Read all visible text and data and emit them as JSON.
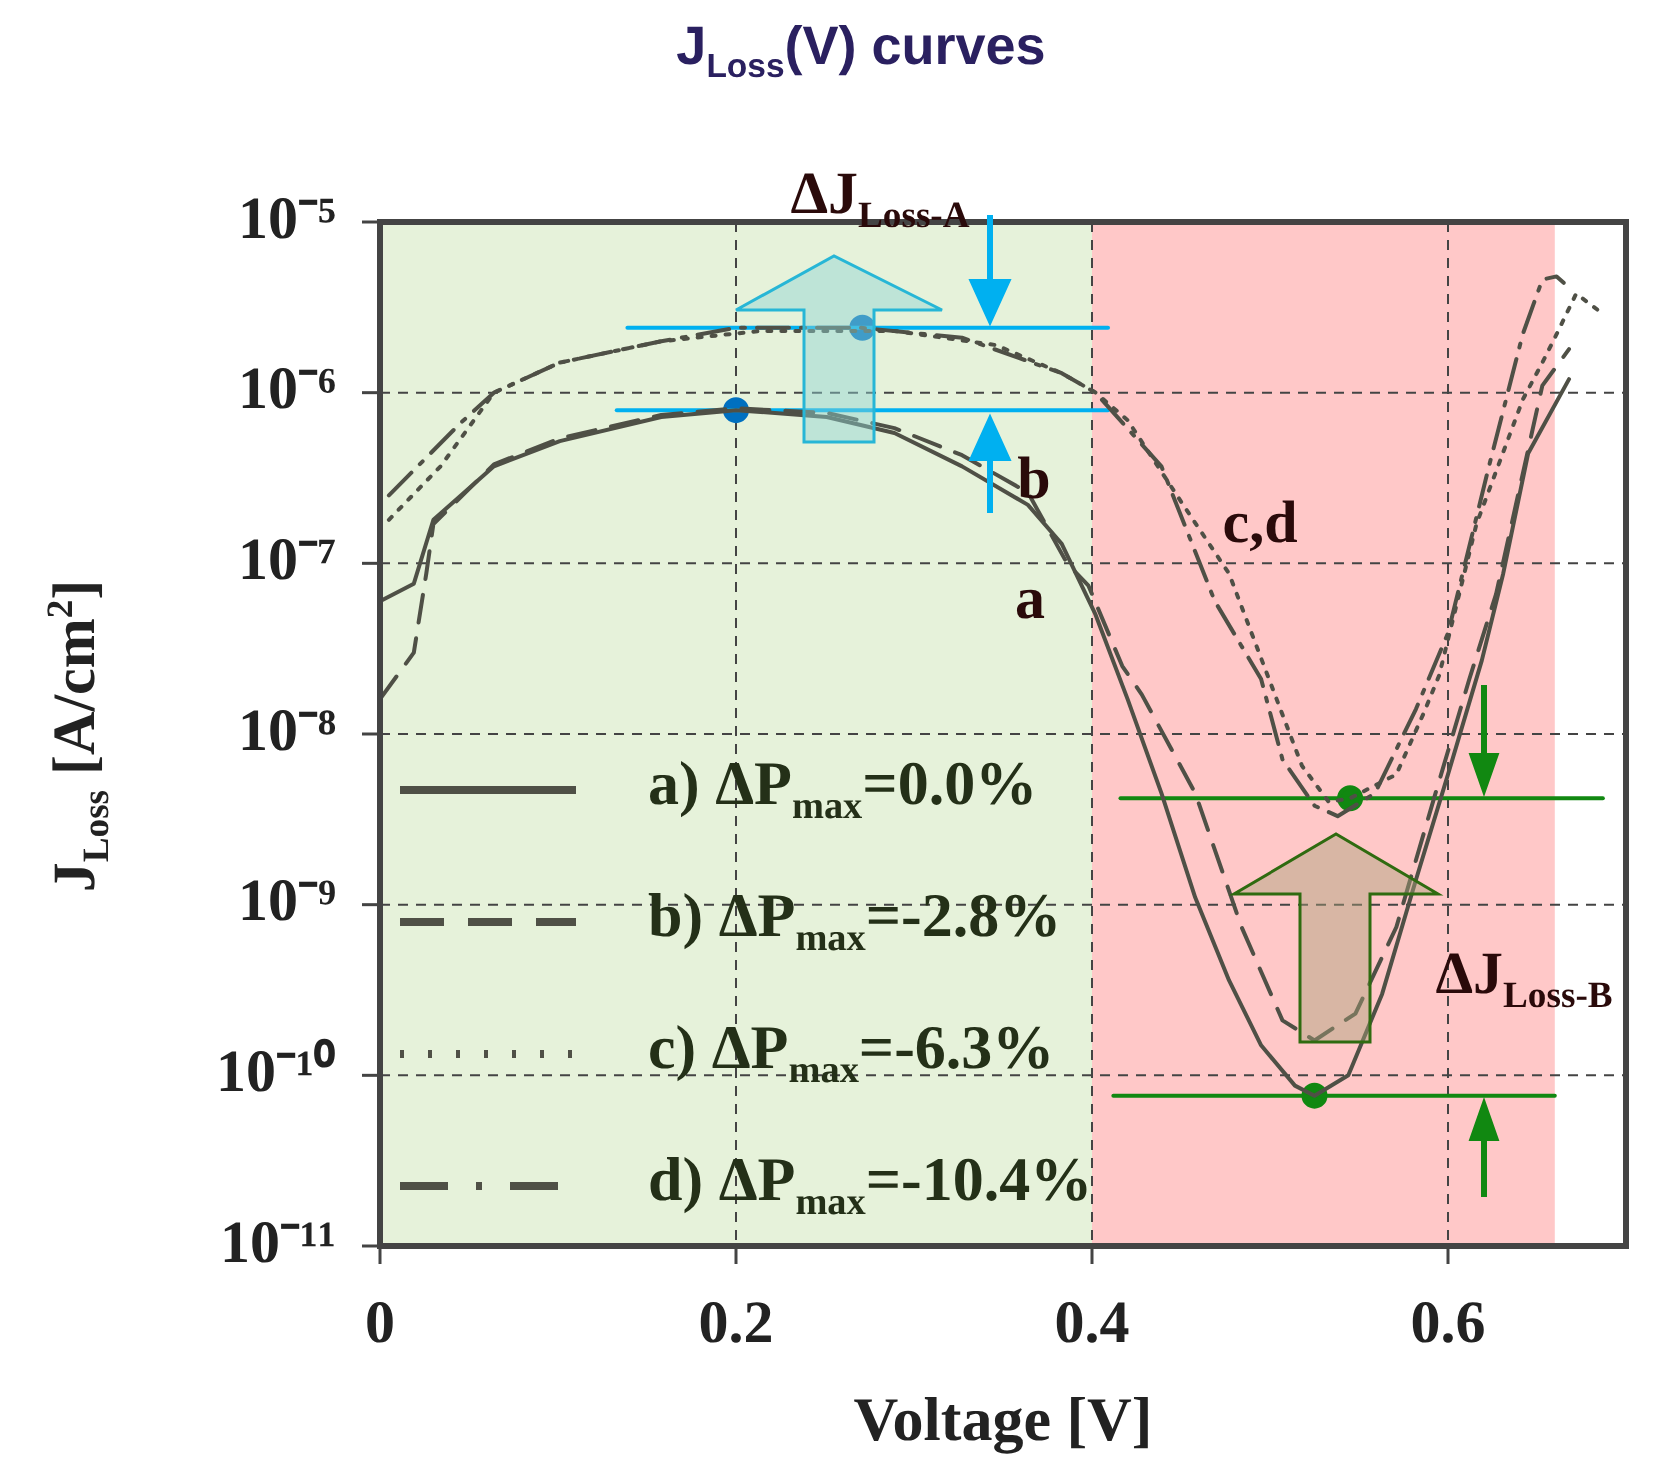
{
  "chart_data": {
    "type": "line",
    "title": "J$_{Loss}$(V) curves",
    "xlabel": "Voltage [V]",
    "ylabel": "J$_{Loss}$ [A/cm$^{2}$]",
    "xlim": [
      0,
      0.7
    ],
    "ylim": [
      1e-11,
      1e-05
    ],
    "xticks": [
      0,
      0.2,
      0.4,
      0.6
    ],
    "yticks": [
      {
        "value": 1e-11,
        "label": "10⁻¹¹"
      },
      {
        "value": 1e-10,
        "label": "10⁻¹⁰"
      },
      {
        "value": 1e-09,
        "label": "10⁻⁹"
      },
      {
        "value": 1e-08,
        "label": "10⁻⁸"
      },
      {
        "value": 1e-07,
        "label": "10⁻⁷"
      },
      {
        "value": 1e-06,
        "label": "10⁻⁶"
      },
      {
        "value": 1e-05,
        "label": "10⁻⁵"
      }
    ],
    "log": "y",
    "grid": true,
    "legend": "bottom left",
    "bands": [
      {
        "axis": "x",
        "from": 0,
        "to": 0.4,
        "color": "#e6f2da"
      },
      {
        "axis": "x",
        "from": 0.4,
        "to": 0.66,
        "color": "#ffc8c8"
      }
    ],
    "series": [
      {
        "name": "a) ΔP$_{max}$=0.0%",
        "color": "#4f5046",
        "line_style": "solid",
        "marker": "none",
        "x": [
          0,
          0.019,
          0.03,
          0.064,
          0.101,
          0.158,
          0.2,
          0.251,
          0.289,
          0.327,
          0.364,
          0.383,
          0.402,
          0.42,
          0.439,
          0.458,
          0.477,
          0.495,
          0.514,
          0.525,
          0.544,
          0.563,
          0.582,
          0.6,
          0.619,
          0.631,
          0.645,
          0.668
        ],
        "values": [
          6e-08,
          7.6e-08,
          1.8e-07,
          3.7e-07,
          5.2e-07,
          7.2e-07,
          7.9e-07,
          7.2e-07,
          5.8e-07,
          3.7e-07,
          2.2e-07,
          1.3e-07,
          5e-08,
          1.6e-08,
          4.5e-09,
          1.1e-09,
          3.6e-10,
          1.5e-10,
          8.7e-11,
          7.6e-11,
          1e-10,
          3e-10,
          1.4e-09,
          5.8e-09,
          2.7e-08,
          8.7e-08,
          4.4e-07,
          1.2e-06
        ]
      },
      {
        "name": "b) ΔP$_{max}$=-2.8%",
        "color": "#4f5046",
        "line_style": "dashed",
        "marker": "none",
        "x": [
          0,
          0.019,
          0.026,
          0.03,
          0.064,
          0.101,
          0.158,
          0.2,
          0.251,
          0.289,
          0.327,
          0.364,
          0.386,
          0.398,
          0.417,
          0.428,
          0.458,
          0.484,
          0.507,
          0.525,
          0.548,
          0.571,
          0.593,
          0.612,
          0.627,
          0.653,
          0.668
        ],
        "values": [
          1.6e-08,
          3e-08,
          8.7e-08,
          1.7e-07,
          3.8e-07,
          5.4e-07,
          7.4e-07,
          8.1e-07,
          7.6e-07,
          6.2e-07,
          4.3e-07,
          2.6e-07,
          1e-07,
          7.4e-08,
          2.5e-08,
          1.7e-08,
          4.5e-09,
          7.4e-10,
          2.1e-10,
          1.6e-10,
          2.3e-10,
          7.4e-10,
          4.5e-09,
          2.1e-08,
          6.6e-08,
          1.1e-06,
          1.8e-06
        ]
      },
      {
        "name": "c) ΔP$_{max}$=-6.3%",
        "color": "#4f5046",
        "line_style": "dotted",
        "marker": "none",
        "x": [
          0.005,
          0.034,
          0.064,
          0.101,
          0.158,
          0.214,
          0.289,
          0.346,
          0.383,
          0.402,
          0.42,
          0.45,
          0.477,
          0.507,
          0.518,
          0.533,
          0.545,
          0.571,
          0.586,
          0.595,
          0.616,
          0.642,
          0.653,
          0.661,
          0.672,
          0.687
        ],
        "values": [
          1.8e-07,
          3.7e-07,
          1e-06,
          1.5e-06,
          2e-06,
          2.3e-06,
          2.3e-06,
          1.9e-06,
          1.3e-06,
          1e-06,
          6.9e-07,
          2.3e-07,
          8.7e-08,
          1.3e-08,
          6.5e-09,
          4e-09,
          4.2e-09,
          5.8e-09,
          1.3e-08,
          2.2e-08,
          1.7e-07,
          9.1e-07,
          1.5e-06,
          2.2e-06,
          3.8e-06,
          2.9e-06
        ]
      },
      {
        "name": "d) ΔP$_{max}$=-10.4%",
        "color": "#4f5046",
        "line_style": "dashdot",
        "marker": "none",
        "x": [
          0.005,
          0.045,
          0.064,
          0.101,
          0.158,
          0.2,
          0.27,
          0.327,
          0.383,
          0.402,
          0.439,
          0.469,
          0.495,
          0.507,
          0.525,
          0.538,
          0.559,
          0.582,
          0.6,
          0.623,
          0.642,
          0.653,
          0.661,
          0.665
        ],
        "values": [
          2.5e-07,
          6.6e-07,
          1e-06,
          1.5e-06,
          2e-06,
          2.4e-06,
          2.4e-06,
          2.1e-06,
          1.3e-06,
          1e-06,
          3.7e-07,
          6e-08,
          2.1e-08,
          7.1e-09,
          3.8e-09,
          3.3e-09,
          4.5e-09,
          1.4e-08,
          3.9e-08,
          3.7e-07,
          2.2e-06,
          4.6e-06,
          4.8e-06,
          4.4e-06
        ]
      },
      {
        "type": "line",
        "color": "#00b0f0",
        "line_style": "solid",
        "marker": "none",
        "x": [
          0.139,
          0.409
        ],
        "values": [
          2.4e-06,
          2.4e-06
        ]
      },
      {
        "type": "line",
        "color": "#00b0f0",
        "line_style": "solid",
        "marker": "none",
        "x": [
          0.133,
          0.409
        ],
        "values": [
          7.9e-07,
          7.9e-07
        ]
      },
      {
        "type": "scatter",
        "color": "#0070c0",
        "marker": "circle",
        "x": [
          0.2,
          0.271
        ],
        "values": [
          7.9e-07,
          2.4e-06
        ]
      },
      {
        "type": "line",
        "color": "#118811",
        "line_style": "solid",
        "marker": "none",
        "x": [
          0.416,
          0.687
        ],
        "values": [
          4.2e-09,
          4.2e-09
        ]
      },
      {
        "type": "line",
        "color": "#118811",
        "line_style": "solid",
        "marker": "none",
        "x": [
          0.412,
          0.66
        ],
        "values": [
          7.6e-11,
          7.6e-11
        ]
      },
      {
        "type": "scatter",
        "color": "#118811",
        "marker": "circle",
        "x": [
          0.525,
          0.545
        ],
        "values": [
          7.6e-11,
          4.2e-09
        ]
      }
    ],
    "annotations": [
      "ΔJ$_{Loss-A}$",
      "ΔJ$_{Loss-B}$",
      "a",
      "b",
      "c,d"
    ]
  }
}
